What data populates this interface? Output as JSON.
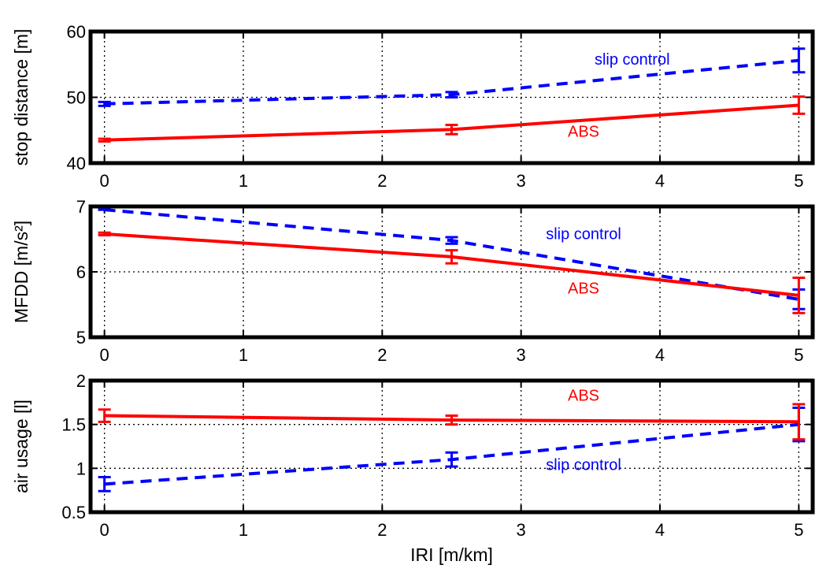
{
  "chart_data": [
    {
      "type": "line",
      "ylabel": "stop distance [m]",
      "xlabel": "",
      "x_ticks": [
        "0",
        "1",
        "2",
        "3",
        "4",
        "5"
      ],
      "y_ticks": [
        "40",
        "50",
        "60"
      ],
      "xlim": [
        -0.1,
        5.1
      ],
      "ylim": [
        40,
        60
      ],
      "grid": true,
      "x": [
        0,
        2.5,
        5
      ],
      "series": [
        {
          "name": "slip control",
          "color": "#0000ff",
          "style": "dashed",
          "values": [
            49.0,
            50.4,
            55.6
          ],
          "err": [
            0.3,
            0.4,
            1.8
          ]
        },
        {
          "name": "ABS",
          "color": "#ff0000",
          "style": "solid",
          "values": [
            43.5,
            45.1,
            48.8
          ],
          "err": [
            0.2,
            0.7,
            1.3
          ]
        }
      ],
      "annotations": [
        {
          "text": "slip control",
          "series": "slip control",
          "x": 3.8,
          "y": 55.0
        },
        {
          "text": "ABS",
          "series": "ABS",
          "x": 3.45,
          "y": 44.0
        }
      ]
    },
    {
      "type": "line",
      "ylabel": "MFDD [m/s²]",
      "xlabel": "",
      "x_ticks": [
        "0",
        "1",
        "2",
        "3",
        "4",
        "5"
      ],
      "y_ticks": [
        "5",
        "6",
        "7"
      ],
      "xlim": [
        -0.1,
        5.1
      ],
      "ylim": [
        5,
        7
      ],
      "grid": true,
      "x": [
        0,
        2.5,
        5
      ],
      "series": [
        {
          "name": "slip control",
          "color": "#0000ff",
          "style": "dashed",
          "values": [
            6.95,
            6.48,
            5.58
          ],
          "err": [
            0.0,
            0.05,
            0.15
          ]
        },
        {
          "name": "ABS",
          "color": "#ff0000",
          "style": "solid",
          "values": [
            6.58,
            6.23,
            5.64
          ],
          "err": [
            0.02,
            0.1,
            0.27
          ]
        }
      ],
      "annotations": [
        {
          "text": "slip control",
          "series": "slip control",
          "x": 3.45,
          "y": 6.5
        },
        {
          "text": "ABS",
          "series": "ABS",
          "x": 3.45,
          "y": 5.67
        }
      ]
    },
    {
      "type": "line",
      "ylabel": "air usage [l]",
      "xlabel": "IRI [m/km]",
      "x_ticks": [
        "0",
        "1",
        "2",
        "3",
        "4",
        "5"
      ],
      "y_ticks": [
        "0.5",
        "1",
        "1.5",
        "2"
      ],
      "xlim": [
        -0.1,
        5.1
      ],
      "ylim": [
        0.5,
        2
      ],
      "grid": true,
      "x": [
        0,
        2.5,
        5
      ],
      "series": [
        {
          "name": "slip control",
          "color": "#0000ff",
          "style": "dashed",
          "values": [
            0.82,
            1.1,
            1.5
          ],
          "err": [
            0.08,
            0.08,
            0.19
          ]
        },
        {
          "name": "ABS",
          "color": "#ff0000",
          "style": "solid",
          "values": [
            1.6,
            1.55,
            1.53
          ],
          "err": [
            0.07,
            0.05,
            0.2
          ]
        }
      ],
      "annotations": [
        {
          "text": "ABS",
          "series": "ABS",
          "x": 3.45,
          "y": 1.77
        },
        {
          "text": "slip control",
          "series": "slip control",
          "x": 3.45,
          "y": 0.98
        }
      ]
    }
  ]
}
